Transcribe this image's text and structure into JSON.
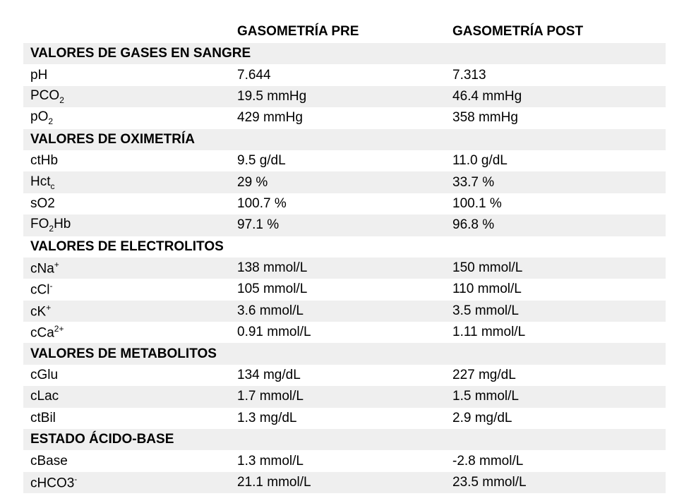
{
  "table": {
    "columns": [
      "GASOMETRÍA PRE",
      "GASOMETRÍA POST"
    ],
    "sections": [
      {
        "title": "VALORES DE GASES EN SANGRE",
        "rows": [
          {
            "label": [
              "pH"
            ],
            "pre": "7.644",
            "post": "7.313"
          },
          {
            "label": [
              "PCO",
              {
                "sub": "2"
              }
            ],
            "pre": "19.5 mmHg",
            "post": "46.4 mmHg"
          },
          {
            "label": [
              "pO",
              {
                "sub": "2"
              }
            ],
            "pre": "429 mmHg",
            "post": "358 mmHg"
          }
        ]
      },
      {
        "title": "VALORES DE OXIMETRÍA",
        "rows": [
          {
            "label": [
              "ctHb"
            ],
            "pre": "9.5 g/dL",
            "post": "11.0 g/dL"
          },
          {
            "label": [
              "Hct",
              {
                "sub": "c"
              }
            ],
            "pre": "29 %",
            "post": "33.7 %"
          },
          {
            "label": [
              "sO2"
            ],
            "pre": "100.7 %",
            "post": "100.1 %"
          },
          {
            "label": [
              "FO",
              {
                "sub": "2"
              },
              "Hb"
            ],
            "pre": "97.1 %",
            "post": "96.8 %"
          }
        ]
      },
      {
        "title": "VALORES DE ELECTROLITOS",
        "rows": [
          {
            "label": [
              "cNa",
              {
                "sup": "+"
              }
            ],
            "pre": "138 mmol/L",
            "post": "150 mmol/L"
          },
          {
            "label": [
              "cCl",
              {
                "sup": "-"
              }
            ],
            "pre": "105 mmol/L",
            "post": "110 mmol/L"
          },
          {
            "label": [
              "cK",
              {
                "sup": "+"
              }
            ],
            "pre": "3.6 mmol/L",
            "post": "3.5 mmol/L"
          },
          {
            "label": [
              "cCa",
              {
                "sup": "2+"
              }
            ],
            "pre": "0.91 mmol/L",
            "post": "1.11 mmol/L"
          }
        ]
      },
      {
        "title": "VALORES DE METABOLITOS",
        "rows": [
          {
            "label": [
              "cGlu"
            ],
            "pre": "134 mg/dL",
            "post": "227 mg/dL"
          },
          {
            "label": [
              "cLac"
            ],
            "pre": "1.7 mmol/L",
            "post": "1.5 mmol/L"
          },
          {
            "label": [
              "ctBil"
            ],
            "pre": "1.3 mg/dL",
            "post": "2.9 mg/dL"
          }
        ]
      },
      {
        "title": "ESTADO ÁCIDO-BASE",
        "rows": [
          {
            "label": [
              "cBase"
            ],
            "pre": "1.3 mmol/L",
            "post": "-2.8 mmol/L"
          },
          {
            "label": [
              "cHCO3",
              {
                "sup": "-"
              }
            ],
            "pre": "21.1 mmol/L",
            "post": "23.5 mmol/L"
          }
        ]
      }
    ]
  }
}
